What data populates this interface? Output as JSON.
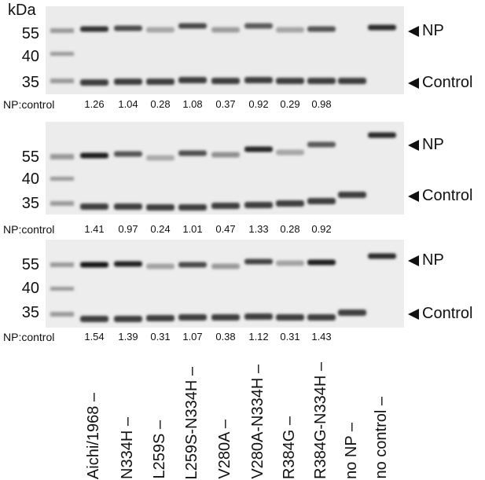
{
  "units_label": "kDa",
  "mw_markers": [
    "55",
    "40",
    "35"
  ],
  "ratio_label": "NP:control",
  "band_labels": {
    "np": "NP",
    "control": "Control"
  },
  "lanes": [
    "Aichi/1968",
    "N334H",
    "L259S",
    "L259S-N334H",
    "V280A",
    "V280A-N334H",
    "R384G",
    "R384G-N334H",
    "no NP",
    "no control"
  ],
  "panels": [
    {
      "ratios": [
        "1.26",
        "1.04",
        "0.28",
        "1.08",
        "0.37",
        "0.92",
        "0.29",
        "0.98"
      ]
    },
    {
      "ratios": [
        "1.41",
        "0.97",
        "0.24",
        "1.01",
        "0.47",
        "1.33",
        "0.28",
        "0.92"
      ]
    },
    {
      "ratios": [
        "1.54",
        "1.39",
        "0.31",
        "1.07",
        "0.38",
        "1.12",
        "0.31",
        "1.43"
      ]
    }
  ]
}
